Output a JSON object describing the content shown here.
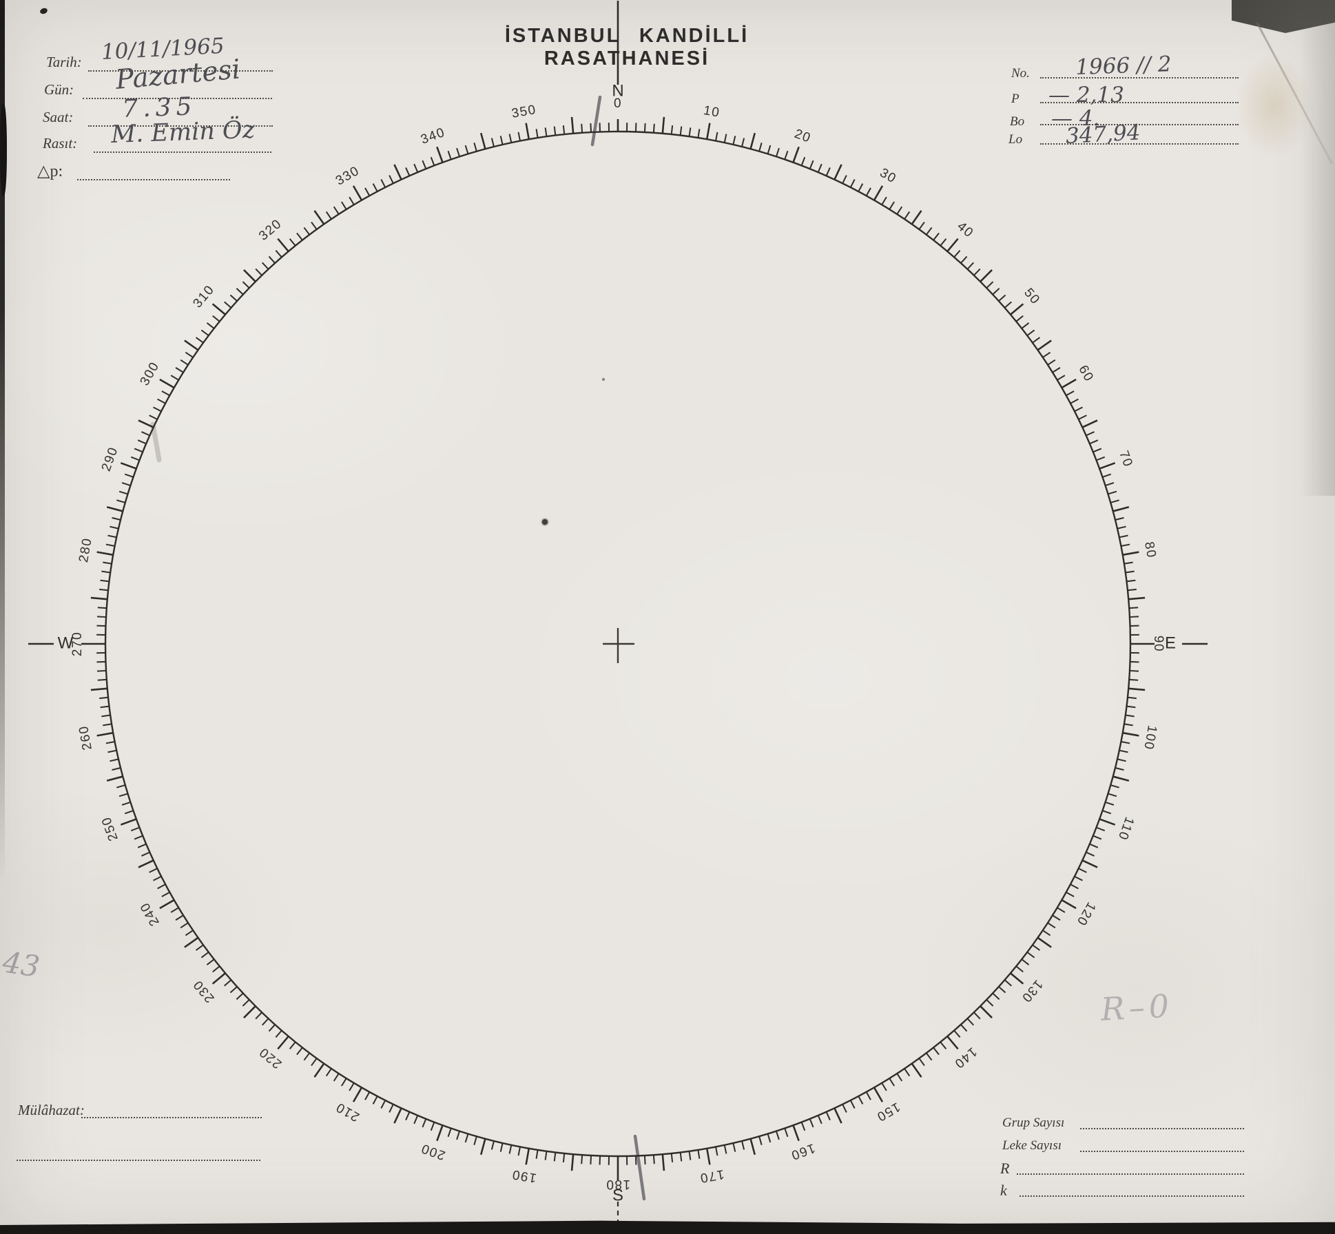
{
  "title": "İSTANBUL KANDİLLİ RASATHANESİ",
  "observation_form": {
    "left_fields": [
      {
        "id": "tarih",
        "label": "Tarih:",
        "value": "10/11/1965"
      },
      {
        "id": "gun",
        "label": "Gün:",
        "value": "Pazartesi"
      },
      {
        "id": "saat",
        "label": "Saat:",
        "value": "7.35"
      },
      {
        "id": "rasit",
        "label": "Rasıt:",
        "value": "M. Emin Öz"
      },
      {
        "id": "delta-p",
        "label": "△p:",
        "value": ""
      }
    ],
    "right_fields": [
      {
        "id": "no",
        "label": "No.",
        "value": "1966 // 2"
      },
      {
        "id": "p",
        "label": "P",
        "value": "— 2,13"
      },
      {
        "id": "bo",
        "label": "Bo",
        "value": "— 4."
      },
      {
        "id": "lo",
        "label": "Lo",
        "value": "347,94"
      }
    ],
    "bottom_right_fields": [
      {
        "id": "grup-sayisi",
        "label": "Grup Sayısı",
        "value": ""
      },
      {
        "id": "leke-sayisi",
        "label": "Leke Sayısı",
        "value": ""
      },
      {
        "id": "r",
        "label": "R",
        "value": ""
      },
      {
        "id": "k",
        "label": "k",
        "value": ""
      }
    ],
    "remarks_label": "Mülâhazat:"
  },
  "compass_dial": {
    "degree_labels": [
      "0",
      "10",
      "20",
      "30",
      "40",
      "50",
      "60",
      "70",
      "80",
      "90",
      "100",
      "110",
      "120",
      "130",
      "140",
      "150",
      "160",
      "170",
      "180",
      "190",
      "200",
      "210",
      "220",
      "230",
      "240",
      "250",
      "260",
      "270",
      "280",
      "290",
      "300",
      "310",
      "320",
      "330",
      "340",
      "350"
    ],
    "cardinals": [
      {
        "letter": "N",
        "deg": 0
      },
      {
        "letter": "E",
        "deg": 90
      },
      {
        "letter": "S",
        "deg": 180
      },
      {
        "letter": "W",
        "deg": 270
      }
    ],
    "tick_minor_step_deg": 1,
    "tick_major_step_deg": 5,
    "label_step_deg": 10
  },
  "pencil_annotations": {
    "left_edge_note": "43",
    "right_area_note": "R–0"
  },
  "colors": {
    "paper": "#e9e6e1",
    "ink": "#2e2d2a",
    "pencil": "#4d4d53"
  }
}
